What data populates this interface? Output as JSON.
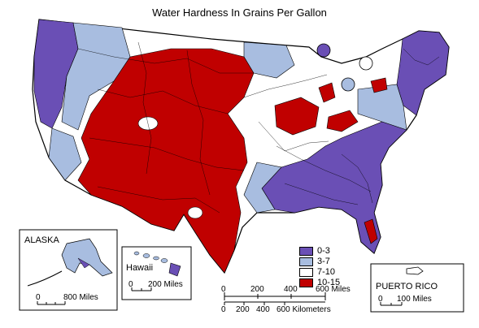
{
  "title": "Water Hardness In Grains Per Gallon",
  "colors": {
    "soft": "#6a4fb5",
    "moderate": "#a8bde0",
    "hard": "#ffffff",
    "very_hard": "#c00000",
    "outline": "#000000",
    "background": "#ffffff"
  },
  "legend": [
    {
      "label": "0-3",
      "color": "#6a4fb5"
    },
    {
      "label": "3-7",
      "color": "#a8bde0"
    },
    {
      "label": "7-10",
      "color": "#ffffff"
    },
    {
      "label": "10-15",
      "color": "#c00000"
    }
  ],
  "insets": {
    "alaska": {
      "name": "ALASKA",
      "scale_start": "0",
      "scale_end": "800 Miles"
    },
    "hawaii": {
      "name": "Hawaii",
      "scale_start": "0",
      "scale_end": "200 Miles"
    },
    "puerto_rico": {
      "name": "PUERTO RICO",
      "scale_start": "0",
      "scale_end": "100 Miles"
    }
  },
  "main_scale": {
    "miles": [
      "0",
      "200",
      "400",
      "600 Miles"
    ],
    "kilometers": [
      "0",
      "200",
      "400",
      "600 Kilometers"
    ]
  }
}
